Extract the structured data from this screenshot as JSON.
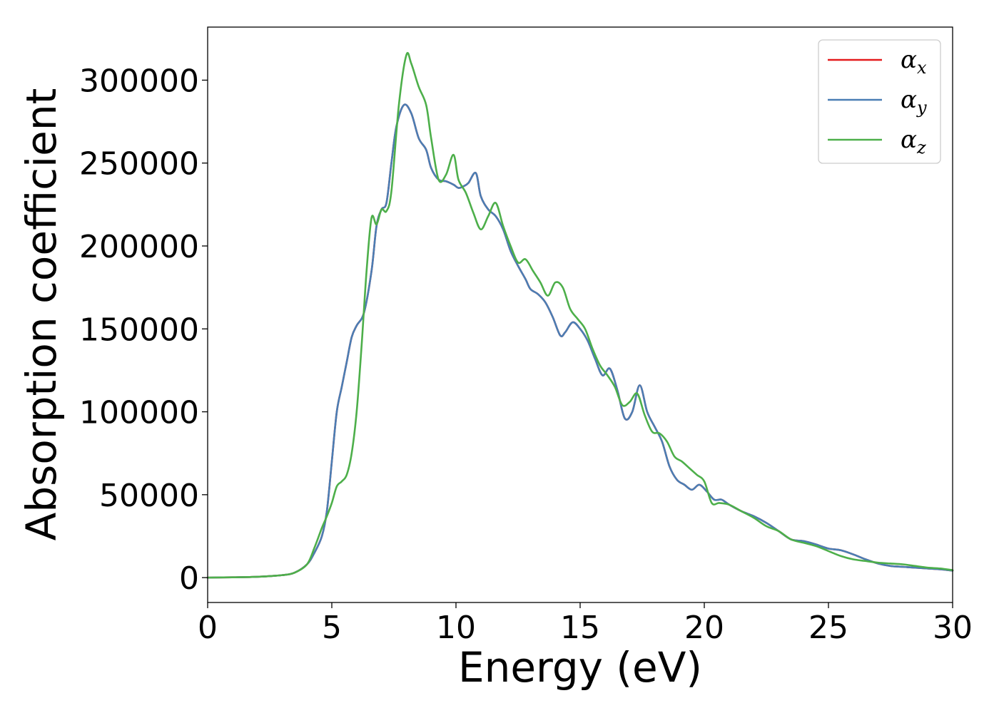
{
  "chart_data": {
    "type": "line",
    "title": "",
    "xlabel": "Energy (eV)",
    "ylabel": "Absorption coefficient",
    "xlim": [
      0,
      30
    ],
    "ylim": [
      -15000,
      332000
    ],
    "xticks": [
      0,
      5,
      10,
      15,
      20,
      25,
      30
    ],
    "yticks": [
      0,
      50000,
      100000,
      150000,
      200000,
      250000,
      300000
    ],
    "grid": false,
    "legend": {
      "placement": "top-right"
    },
    "series": [
      {
        "name": "α",
        "subscript": "x",
        "color": "#e41a1c",
        "x": [
          0,
          1,
          2,
          3,
          3.5,
          4,
          4.3,
          4.6,
          4.8,
          5,
          5.2,
          5.4,
          5.6,
          5.8,
          6,
          6.3,
          6.6,
          6.8,
          7,
          7.2,
          7.4,
          7.6,
          7.9,
          8.2,
          8.5,
          8.8,
          9,
          9.3,
          9.6,
          9.9,
          10.1,
          10.3,
          10.5,
          10.8,
          11,
          11.3,
          11.6,
          11.9,
          12.2,
          12.5,
          12.8,
          13,
          13.3,
          13.6,
          13.9,
          14.2,
          14.4,
          14.7,
          15,
          15.3,
          15.6,
          15.9,
          16.2,
          16.5,
          16.8,
          17.1,
          17.4,
          17.7,
          18,
          18.3,
          18.6,
          18.9,
          19.2,
          19.5,
          19.8,
          20.1,
          20.4,
          20.7,
          21,
          21.5,
          22,
          22.5,
          23,
          23.5,
          24,
          24.5,
          25,
          25.5,
          26,
          26.5,
          27,
          27.5,
          28,
          28.5,
          29,
          29.5,
          30
        ],
        "y": [
          0,
          200,
          500,
          1500,
          3000,
          8000,
          15000,
          25000,
          40000,
          70000,
          100000,
          115000,
          130000,
          145000,
          152000,
          160000,
          185000,
          212000,
          222000,
          226000,
          250000,
          272000,
          285000,
          280000,
          265000,
          258000,
          247000,
          240000,
          239000,
          237000,
          235000,
          236000,
          238000,
          244000,
          230000,
          222000,
          218000,
          210000,
          197000,
          188000,
          180000,
          174000,
          171000,
          166000,
          157000,
          146000,
          148000,
          154000,
          150000,
          143000,
          132000,
          122000,
          126000,
          113000,
          96000,
          100000,
          116000,
          100000,
          91000,
          82000,
          67000,
          59000,
          56000,
          53000,
          56000,
          52000,
          47000,
          47000,
          44000,
          40000,
          37000,
          33000,
          28000,
          23000,
          22000,
          20000,
          17500,
          16500,
          14000,
          11000,
          8500,
          7000,
          6500,
          6000,
          5500,
          5000,
          4200
        ]
      },
      {
        "name": "α",
        "subscript": "y",
        "color": "#4a7eb4",
        "x": [
          0,
          1,
          2,
          3,
          3.5,
          4,
          4.3,
          4.6,
          4.8,
          5,
          5.2,
          5.4,
          5.6,
          5.8,
          6,
          6.3,
          6.6,
          6.8,
          7,
          7.2,
          7.4,
          7.6,
          7.9,
          8.2,
          8.5,
          8.8,
          9,
          9.3,
          9.6,
          9.9,
          10.1,
          10.3,
          10.5,
          10.8,
          11,
          11.3,
          11.6,
          11.9,
          12.2,
          12.5,
          12.8,
          13,
          13.3,
          13.6,
          13.9,
          14.2,
          14.4,
          14.7,
          15,
          15.3,
          15.6,
          15.9,
          16.2,
          16.5,
          16.8,
          17.1,
          17.4,
          17.7,
          18,
          18.3,
          18.6,
          18.9,
          19.2,
          19.5,
          19.8,
          20.1,
          20.4,
          20.7,
          21,
          21.5,
          22,
          22.5,
          23,
          23.5,
          24,
          24.5,
          25,
          25.5,
          26,
          26.5,
          27,
          27.5,
          28,
          28.5,
          29,
          29.5,
          30
        ],
        "y": [
          0,
          200,
          500,
          1500,
          3000,
          8000,
          15000,
          25000,
          40000,
          70000,
          100000,
          115000,
          130000,
          145000,
          152000,
          160000,
          185000,
          212000,
          222000,
          226000,
          250000,
          272000,
          285000,
          280000,
          265000,
          258000,
          247000,
          240000,
          239000,
          237000,
          235000,
          236000,
          238000,
          244000,
          230000,
          222000,
          218000,
          210000,
          197000,
          188000,
          180000,
          174000,
          171000,
          166000,
          157000,
          146000,
          148000,
          154000,
          150000,
          143000,
          132000,
          122000,
          126000,
          113000,
          96000,
          100000,
          116000,
          100000,
          91000,
          82000,
          67000,
          59000,
          56000,
          53000,
          56000,
          52000,
          47000,
          47000,
          44000,
          40000,
          37000,
          33000,
          28000,
          23000,
          22000,
          20000,
          17500,
          16500,
          14000,
          11000,
          8500,
          7000,
          6500,
          6000,
          5500,
          5000,
          4200
        ]
      },
      {
        "name": "α",
        "subscript": "z",
        "color": "#4daf4a",
        "x": [
          0,
          1,
          2,
          3,
          3.5,
          4,
          4.3,
          4.6,
          4.8,
          5,
          5.2,
          5.4,
          5.6,
          5.8,
          6,
          6.2,
          6.4,
          6.6,
          6.8,
          7,
          7.2,
          7.4,
          7.7,
          8,
          8.2,
          8.5,
          8.8,
          9,
          9.3,
          9.6,
          9.9,
          10.1,
          10.4,
          10.7,
          11,
          11.3,
          11.6,
          11.9,
          12.2,
          12.5,
          12.8,
          13.1,
          13.4,
          13.7,
          14,
          14.3,
          14.6,
          14.9,
          15.2,
          15.5,
          15.8,
          16.1,
          16.4,
          16.7,
          17,
          17.3,
          17.6,
          17.9,
          18.2,
          18.5,
          18.8,
          19.1,
          19.4,
          19.7,
          20,
          20.3,
          20.6,
          21,
          21.5,
          22,
          22.5,
          23,
          23.5,
          24,
          24.5,
          25,
          25.5,
          26,
          26.5,
          27,
          27.5,
          28,
          28.5,
          29,
          29.5,
          30
        ],
        "y": [
          0,
          200,
          500,
          1500,
          3000,
          8000,
          18000,
          30000,
          37000,
          45000,
          55000,
          58000,
          62000,
          75000,
          100000,
          140000,
          185000,
          217000,
          213000,
          222000,
          221000,
          233000,
          285000,
          315000,
          310000,
          296000,
          285000,
          265000,
          240000,
          243000,
          255000,
          240000,
          232000,
          220000,
          210000,
          218000,
          226000,
          212000,
          200000,
          190000,
          192000,
          185000,
          178000,
          170000,
          178000,
          175000,
          162000,
          156000,
          150000,
          138000,
          128000,
          122000,
          115000,
          104000,
          106000,
          111000,
          98000,
          88000,
          87000,
          82000,
          73000,
          70000,
          66000,
          62000,
          58000,
          45000,
          45000,
          44000,
          40000,
          36000,
          31000,
          28000,
          23000,
          21000,
          19000,
          16000,
          13000,
          11000,
          10000,
          9000,
          8500,
          8000,
          7000,
          6000,
          5500,
          4500
        ]
      }
    ]
  }
}
